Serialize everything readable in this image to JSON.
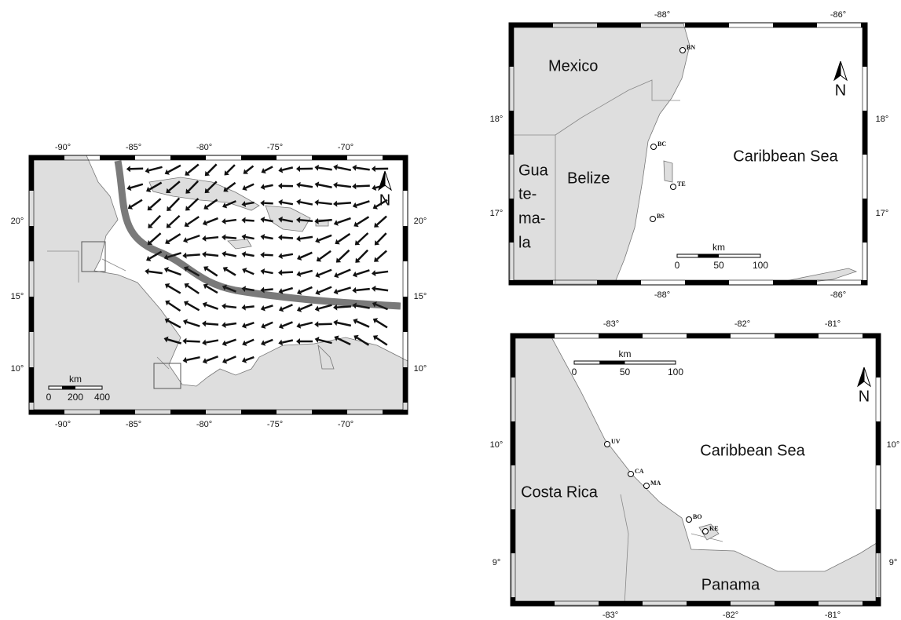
{
  "overview_map": {
    "top_ticks": [
      "-90°",
      "-85°",
      "-80°",
      "-75°",
      "-70°"
    ],
    "bottom_ticks": [
      "-90°",
      "-85°",
      "-80°",
      "-75°",
      "-70°"
    ],
    "left_ticks": [
      "20°",
      "15°",
      "10°"
    ],
    "right_ticks": [
      "20°",
      "15°",
      "10°"
    ],
    "north": "N",
    "scale_bar": {
      "unit": "km",
      "labels": [
        "0",
        "200",
        "400"
      ]
    }
  },
  "belize_map": {
    "top_ticks": [
      "-88°",
      "-86°"
    ],
    "bottom_ticks": [
      "-88°",
      "-86°"
    ],
    "left_ticks": [
      "18°",
      "17°"
    ],
    "right_ticks": [
      "18°",
      "17°"
    ],
    "north": "N",
    "scale_bar": {
      "unit": "km",
      "labels": [
        "0",
        "50",
        "100"
      ]
    },
    "places": [
      "Mexico",
      "Belize",
      "Gua",
      "te-",
      "ma-",
      "la",
      "Caribbean Sea"
    ],
    "sites": [
      "BN",
      "BC",
      "TE",
      "BS"
    ]
  },
  "costa_rica_map": {
    "top_ticks": [
      "-83°",
      "-82°",
      "-81°"
    ],
    "bottom_ticks": [
      "-83°",
      "-82°",
      "-81°"
    ],
    "left_ticks": [
      "10°",
      "9°"
    ],
    "right_ticks": [
      "10°",
      "9°"
    ],
    "north": "N",
    "scale_bar": {
      "unit": "km",
      "labels": [
        "0",
        "50",
        "100"
      ]
    },
    "places": [
      "Costa Rica",
      "Caribbean Sea",
      "Panama"
    ],
    "sites": [
      "UV",
      "CA",
      "MA",
      "BO",
      "KE"
    ]
  }
}
